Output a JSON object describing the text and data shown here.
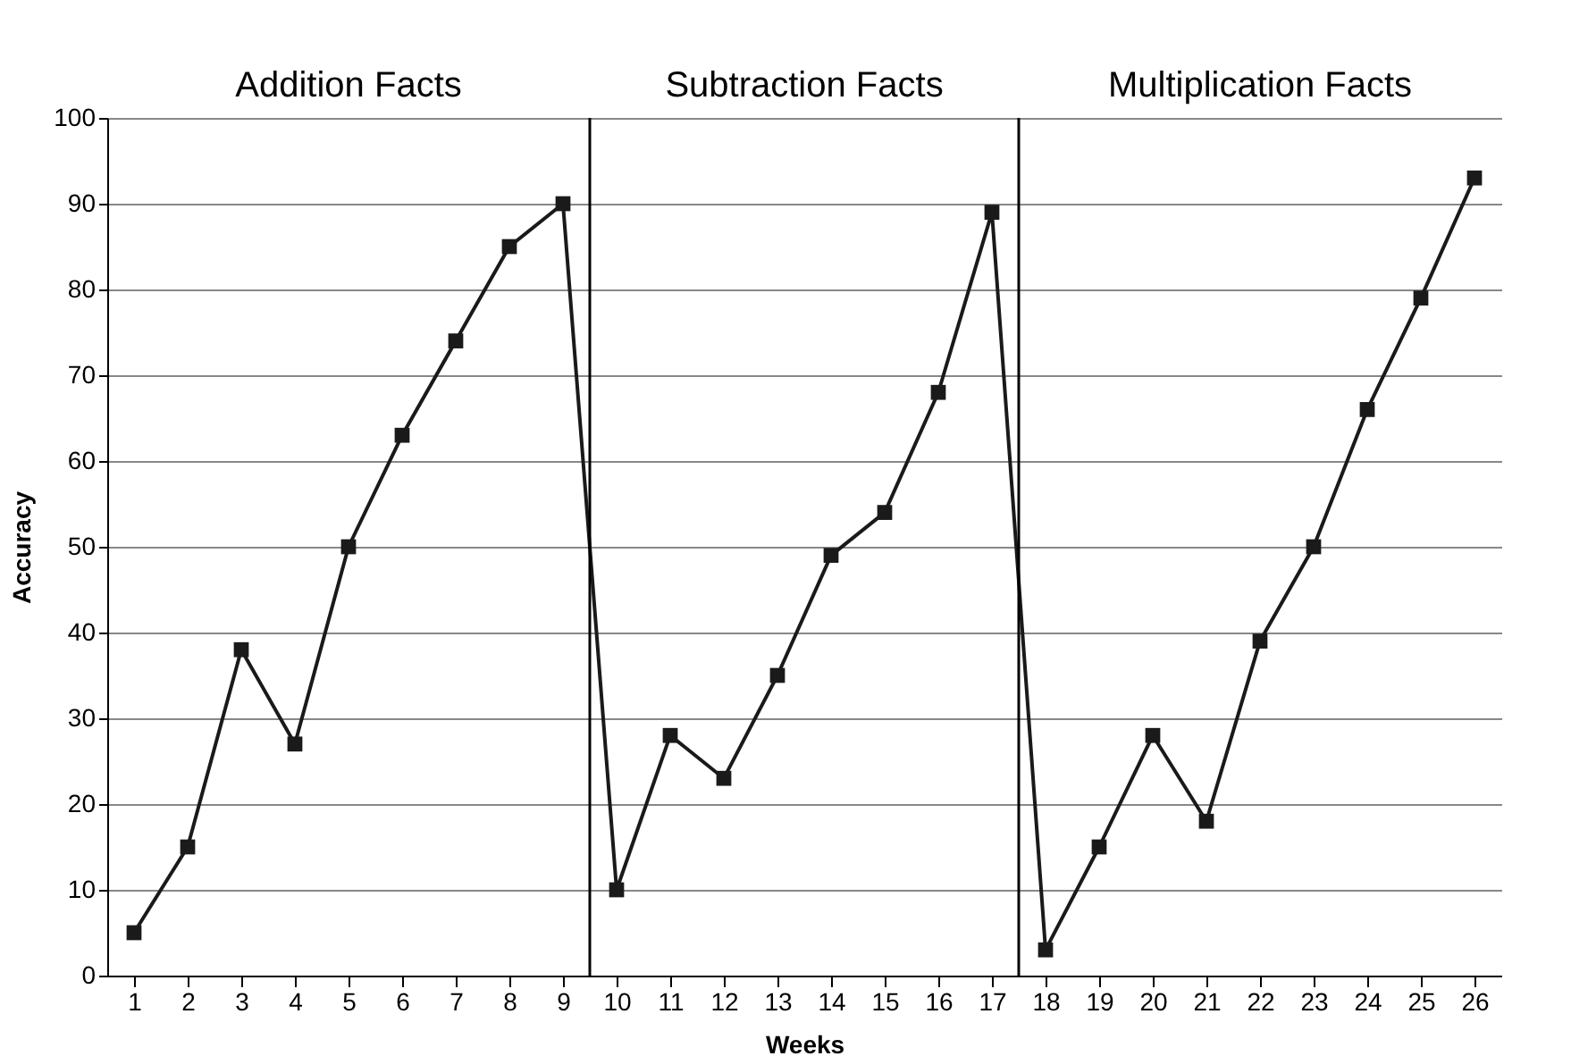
{
  "chart_data": {
    "type": "line",
    "xlabel": "Weeks",
    "ylabel": "Accuracy",
    "x": [
      1,
      2,
      3,
      4,
      5,
      6,
      7,
      8,
      9,
      10,
      11,
      12,
      13,
      14,
      15,
      16,
      17,
      18,
      19,
      20,
      21,
      22,
      23,
      24,
      25,
      26
    ],
    "series": [
      {
        "color": "#1a1a1a",
        "values": [
          5,
          15,
          38,
          27,
          50,
          63,
          74,
          85,
          90,
          10,
          28,
          23,
          35,
          49,
          54,
          68,
          89,
          3,
          15,
          28,
          18,
          39,
          50,
          66,
          79,
          93
        ]
      }
    ],
    "xlim": [
      0.5,
      26.5
    ],
    "xticks": [
      1,
      2,
      3,
      4,
      5,
      6,
      7,
      8,
      9,
      10,
      11,
      12,
      13,
      14,
      15,
      16,
      17,
      18,
      19,
      20,
      21,
      22,
      23,
      24,
      25,
      26
    ],
    "ylim": [
      0,
      100
    ],
    "yticks": [
      0,
      10,
      20,
      30,
      40,
      50,
      60,
      70,
      80,
      90,
      100
    ],
    "ref_lines": [
      {
        "axis": "x",
        "value": 9.5,
        "color": "#000000"
      },
      {
        "axis": "x",
        "value": 17.5,
        "color": "#000000"
      }
    ],
    "annotations": [
      "Addition Facts",
      "Subtraction Facts",
      "Multiplication Facts"
    ],
    "grid": "y",
    "marker": "square",
    "line_style": "solid"
  }
}
